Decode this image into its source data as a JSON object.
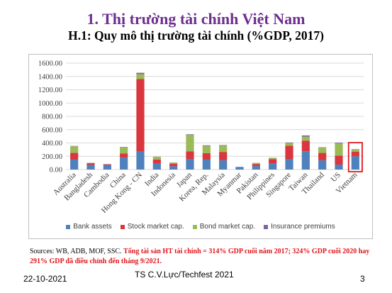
{
  "slide": {
    "title": "1. Thị trường tài chính Việt Nam",
    "subtitle": "H.1: Quy mô thị trường tài chính (%GDP, 2017)",
    "source_prefix": "Sources: WB, ADB, MOF, SSC. ",
    "source_highlight": "Tổng tài sản HT tài chính = 314% GDP cuối năm 2017; 324% GDP cuối 2020 hay 291% GDP đã điều chỉnh đến tháng 9/2021.",
    "date": "22-10-2021",
    "footer_center": "TS C.V.Lực/Techfest 2021",
    "page_number": "3"
  },
  "chart_data": {
    "type": "bar",
    "stacked": true,
    "title": "",
    "xlabel": "",
    "ylabel": "",
    "ylim": [
      0,
      1600
    ],
    "y_ticks": [
      "0.00",
      "200.00",
      "400.00",
      "600.00",
      "800.00",
      "1000.00",
      "1200.00",
      "1400.00",
      "1600.00"
    ],
    "grid": true,
    "legend_position": "bottom",
    "categories": [
      "Australia",
      "Bangladesh",
      "Cambodia",
      "China",
      "Hong Kong - CN",
      "India",
      "Indonesia",
      "Japan",
      "Korea, Rep.",
      "Malaysia",
      "Myanmar",
      "Pakistan",
      "Philippines",
      "Singapore",
      "Taiwan",
      "Thailand",
      "US",
      "Vietnam"
    ],
    "highlight_category": "Vietnam",
    "highlight_color": "#e0171c",
    "series": [
      {
        "name": "Bank assets",
        "color": "#4f81bd",
        "values": [
          150,
          70,
          70,
          180,
          270,
          90,
          50,
          160,
          150,
          140,
          40,
          50,
          95,
          160,
          275,
          140,
          75,
          200
        ]
      },
      {
        "name": "Stock market cap.",
        "color": "#d9363e",
        "values": [
          100,
          25,
          10,
          60,
          1090,
          60,
          35,
          115,
          95,
          125,
          0,
          30,
          60,
          200,
          160,
          110,
          135,
          70
        ]
      },
      {
        "name": "Bond market cap.",
        "color": "#9bbb59",
        "values": [
          100,
          5,
          0,
          95,
          75,
          40,
          20,
          245,
          110,
          100,
          0,
          20,
          20,
          40,
          60,
          80,
          185,
          35
        ]
      },
      {
        "name": "Insurance premiums",
        "color": "#8064a2",
        "values": [
          5,
          2,
          1,
          5,
          20,
          4,
          2,
          10,
          10,
          5,
          0,
          1,
          2,
          7,
          18,
          5,
          10,
          3
        ]
      }
    ]
  }
}
